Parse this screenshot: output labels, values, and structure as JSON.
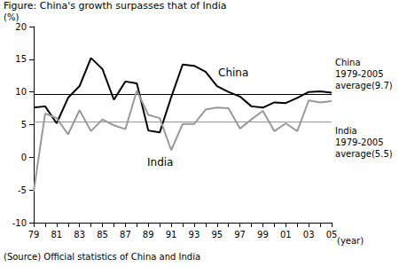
{
  "chart_data": {
    "type": "line",
    "title": "Figure: China's growth surpasses that of India",
    "y_label": "(%)",
    "x_label": "(year)",
    "source": "(Source) Official statistics of China and India",
    "categories": [
      "79",
      null,
      "81",
      null,
      "83",
      null,
      "85",
      null,
      "87",
      null,
      "89",
      null,
      "91",
      null,
      "93",
      null,
      "95",
      null,
      "97",
      null,
      "99",
      null,
      "01",
      null,
      "03",
      null,
      "05"
    ],
    "series": [
      {
        "name": "China",
        "color": "#000000",
        "values": [
          7.6,
          7.8,
          5.2,
          9.1,
          10.9,
          15.2,
          13.5,
          8.8,
          11.6,
          11.3,
          4.1,
          3.8,
          9.2,
          14.2,
          14.0,
          13.1,
          10.9,
          10.0,
          9.3,
          7.8,
          7.6,
          8.4,
          8.3,
          9.1,
          10.0,
          10.1,
          9.9
        ]
      },
      {
        "name": "India",
        "color": "#999999",
        "values": [
          -5.2,
          6.7,
          6.0,
          3.5,
          7.2,
          4.0,
          5.8,
          4.9,
          4.3,
          10.2,
          6.5,
          6.0,
          1.1,
          5.1,
          5.1,
          7.3,
          7.6,
          7.5,
          4.4,
          5.8,
          7.1,
          4.0,
          5.2,
          4.0,
          8.7,
          8.4,
          8.6
        ]
      }
    ],
    "averages": [
      {
        "value": 9.7,
        "label": "China\n1979-2005\naverage(9.7)",
        "color": "#000000"
      },
      {
        "value": 5.5,
        "label": "India\n1979-2005\naverage(5.5)",
        "color": "#999999"
      }
    ],
    "ylim": [
      -10,
      20
    ],
    "yticks": [
      -10,
      -5,
      0,
      5,
      10,
      15,
      20
    ],
    "grid": false
  }
}
